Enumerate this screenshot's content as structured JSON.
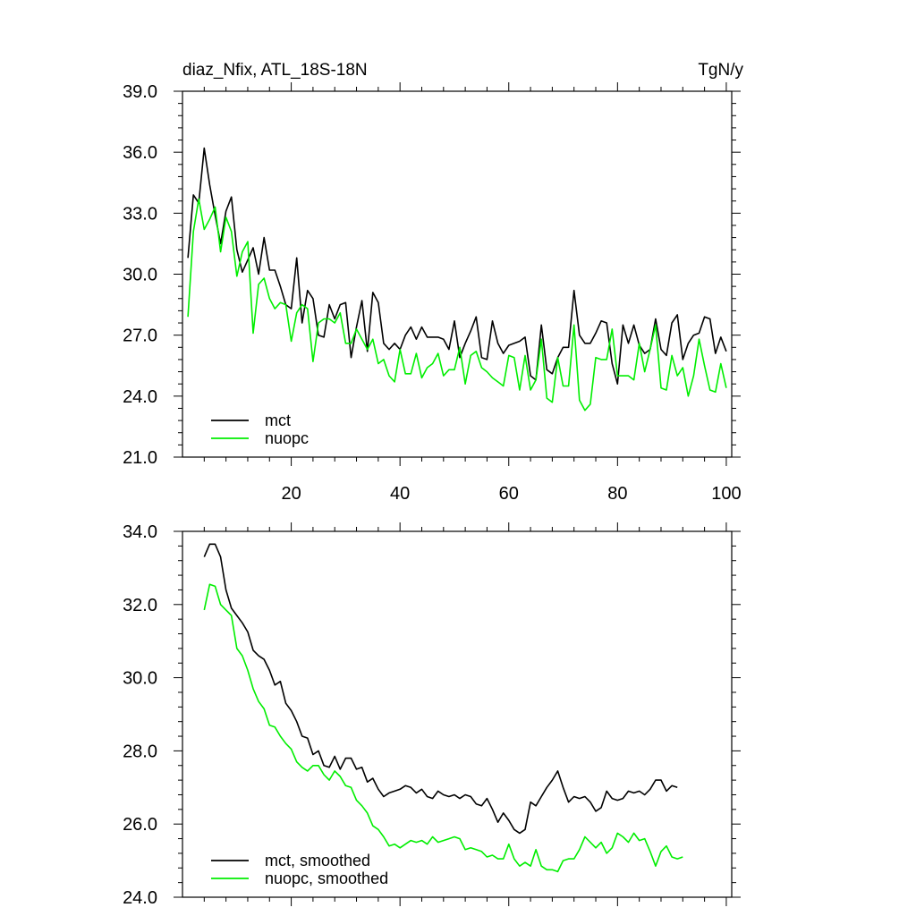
{
  "chart_data": [
    {
      "type": "line",
      "title_left": "diaz_Nfix, ATL_18S-18N",
      "title_right": "TgN/y",
      "xlim": [
        0,
        101
      ],
      "ylim": [
        21,
        39
      ],
      "x_ticks": [
        20,
        40,
        60,
        80,
        100
      ],
      "y_ticks": [
        21,
        24,
        27,
        30,
        33,
        36,
        39
      ],
      "y_tick_labels": [
        "21.0",
        "24.0",
        "27.0",
        "30.0",
        "33.0",
        "36.0",
        "39.0"
      ],
      "legend_position": "bottom-left",
      "series": [
        {
          "name": "mct",
          "color": "#000000",
          "values": [
            30.8,
            33.9,
            33.5,
            36.2,
            34.4,
            32.9,
            31.5,
            33.1,
            33.8,
            31.2,
            30.1,
            30.7,
            31.3,
            30.0,
            31.8,
            30.2,
            30.2,
            29.4,
            28.5,
            28.3,
            30.8,
            27.6,
            29.2,
            28.8,
            27.0,
            26.9,
            28.5,
            27.8,
            28.5,
            28.6,
            25.9,
            27.4,
            28.7,
            26.2,
            29.1,
            28.6,
            26.6,
            26.3,
            26.6,
            26.3,
            27.0,
            27.4,
            26.8,
            27.4,
            26.9,
            26.9,
            26.9,
            26.8,
            26.3,
            27.7,
            25.9,
            26.6,
            27.2,
            27.9,
            25.9,
            25.8,
            27.7,
            26.6,
            26.1,
            26.5,
            26.6,
            26.7,
            26.9,
            25.0,
            24.8,
            27.5,
            25.3,
            25.1,
            25.9,
            26.4,
            26.4,
            29.2,
            27.0,
            26.6,
            26.6,
            27.1,
            27.7,
            27.6,
            25.6,
            24.6,
            27.5,
            26.6,
            27.5,
            26.5,
            26.1,
            26.3,
            27.8,
            26.3,
            26.0,
            27.6,
            28.0,
            25.8,
            26.6,
            27.0,
            27.1,
            27.9,
            27.8,
            26.1,
            26.9,
            26.2
          ]
        },
        {
          "name": "nuopc",
          "color": "#00ee00",
          "values": [
            27.9,
            32.1,
            33.7,
            32.2,
            32.7,
            33.3,
            31.1,
            32.8,
            32.1,
            29.9,
            31.1,
            31.6,
            27.1,
            29.5,
            29.8,
            28.8,
            28.3,
            28.6,
            28.5,
            26.7,
            28.1,
            28.5,
            28.3,
            25.7,
            27.6,
            27.8,
            27.8,
            27.6,
            28.1,
            26.6,
            26.6,
            27.3,
            26.8,
            26.3,
            26.8,
            25.6,
            25.8,
            25.0,
            24.7,
            26.3,
            25.1,
            25.1,
            26.1,
            24.9,
            25.4,
            25.6,
            26.1,
            25.0,
            25.3,
            25.3,
            26.4,
            24.6,
            26.0,
            26.2,
            25.4,
            25.2,
            24.9,
            24.7,
            24.5,
            26.0,
            25.9,
            24.3,
            26.0,
            24.3,
            24.8,
            26.8,
            23.9,
            23.7,
            25.9,
            24.5,
            24.5,
            27.5,
            23.8,
            23.3,
            23.6,
            25.9,
            25.8,
            25.8,
            27.3,
            25.0,
            25.0,
            25.0,
            24.8,
            26.6,
            25.2,
            26.3,
            27.5,
            24.4,
            24.3,
            26.0,
            25.0,
            25.4,
            24.0,
            25.0,
            26.8,
            25.5,
            24.3,
            24.2,
            25.6,
            24.4
          ]
        }
      ]
    },
    {
      "type": "line",
      "xlim": [
        0,
        101
      ],
      "ylim": [
        24,
        34
      ],
      "y_ticks": [
        24,
        26,
        28,
        30,
        32,
        34
      ],
      "y_tick_labels": [
        "24.0",
        "26.0",
        "28.0",
        "30.0",
        "32.0",
        "34.0"
      ],
      "legend_position": "bottom-left",
      "series": [
        {
          "name": "mct, smoothed",
          "color": "#000000",
          "x_start": 4,
          "values": [
            33.3,
            33.65,
            33.65,
            33.3,
            32.4,
            31.9,
            31.7,
            31.5,
            31.25,
            30.75,
            30.6,
            30.5,
            30.2,
            29.8,
            29.9,
            29.3,
            29.1,
            28.8,
            28.4,
            28.35,
            27.9,
            28.0,
            27.6,
            27.55,
            27.85,
            27.5,
            27.8,
            27.8,
            27.5,
            27.55,
            27.15,
            27.25,
            26.95,
            26.75,
            26.85,
            26.9,
            26.95,
            27.05,
            27.0,
            26.85,
            26.95,
            26.75,
            26.7,
            26.9,
            26.8,
            26.75,
            26.8,
            26.7,
            26.8,
            26.75,
            26.55,
            26.5,
            26.7,
            26.4,
            26.05,
            26.3,
            26.1,
            25.85,
            25.75,
            25.85,
            26.6,
            26.5,
            26.75,
            27.0,
            27.2,
            27.45,
            27.0,
            26.6,
            26.75,
            26.7,
            26.75,
            26.6,
            26.35,
            26.45,
            26.9,
            26.7,
            26.65,
            26.7,
            26.9,
            26.85,
            26.9,
            26.8,
            26.95,
            27.2,
            27.2,
            26.9,
            27.05,
            27.0
          ]
        },
        {
          "name": "nuopc, smoothed",
          "color": "#00ee00",
          "x_start": 4,
          "values": [
            31.85,
            32.55,
            32.5,
            32.0,
            31.85,
            31.7,
            30.8,
            30.6,
            30.2,
            29.7,
            29.35,
            29.15,
            28.7,
            28.65,
            28.4,
            28.2,
            28.05,
            27.7,
            27.55,
            27.45,
            27.6,
            27.6,
            27.35,
            27.2,
            27.45,
            27.3,
            27.05,
            27.0,
            26.65,
            26.5,
            26.3,
            25.95,
            25.85,
            25.65,
            25.4,
            25.45,
            25.35,
            25.45,
            25.55,
            25.5,
            25.55,
            25.45,
            25.65,
            25.5,
            25.55,
            25.6,
            25.65,
            25.6,
            25.3,
            25.35,
            25.3,
            25.25,
            25.1,
            25.15,
            25.05,
            25.05,
            25.45,
            25.05,
            24.85,
            24.95,
            24.85,
            25.3,
            24.85,
            24.75,
            24.75,
            24.7,
            25.0,
            25.05,
            25.05,
            25.3,
            25.65,
            25.5,
            25.35,
            25.5,
            25.2,
            25.35,
            25.75,
            25.65,
            25.5,
            25.75,
            25.55,
            25.6,
            25.25,
            24.85,
            25.25,
            25.4,
            25.1,
            25.05,
            25.1
          ]
        }
      ]
    }
  ]
}
